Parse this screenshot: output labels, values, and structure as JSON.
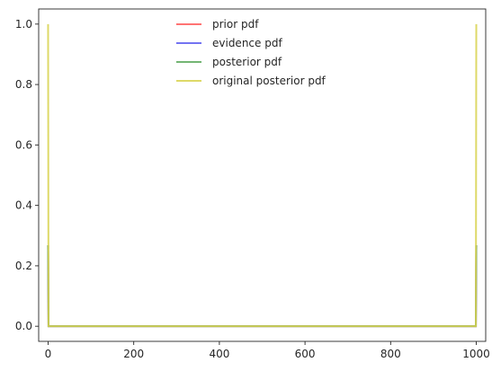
{
  "chart_data": {
    "type": "line",
    "title": "",
    "xlabel": "",
    "ylabel": "",
    "xlim": [
      -22,
      1022
    ],
    "ylim": [
      -0.05,
      1.05
    ],
    "xticks": [
      0,
      200,
      400,
      600,
      800,
      1000
    ],
    "yticks": [
      0.0,
      0.2,
      0.4,
      0.6,
      0.8,
      1.0
    ],
    "xtick_labels": [
      "0",
      "200",
      "400",
      "600",
      "800",
      "1000"
    ],
    "ytick_labels": [
      "0.0",
      "0.2",
      "0.4",
      "0.6",
      "0.8",
      "1.0"
    ],
    "grid": false,
    "legend_position": "top-center",
    "series": [
      {
        "name": "prior pdf",
        "color": "#ff5a5a",
        "x": [
          0,
          1,
          999,
          1000
        ],
        "y": [
          0.268,
          0.0,
          0.0,
          0.268
        ]
      },
      {
        "name": "evidence pdf",
        "color": "#5a5af0",
        "x": [
          0,
          1,
          999,
          1000
        ],
        "y": [
          0.268,
          0.0,
          0.0,
          0.268
        ]
      },
      {
        "name": "posterior pdf",
        "color": "#5aa85a",
        "x": [
          0,
          1,
          999,
          1000
        ],
        "y": [
          0.268,
          0.0,
          0.0,
          0.268
        ]
      },
      {
        "name": "original posterior pdf",
        "color": "#d8d24e",
        "x": [
          0,
          1,
          999,
          1000
        ],
        "y": [
          1.0,
          0.0,
          0.0,
          1.0
        ]
      }
    ]
  }
}
